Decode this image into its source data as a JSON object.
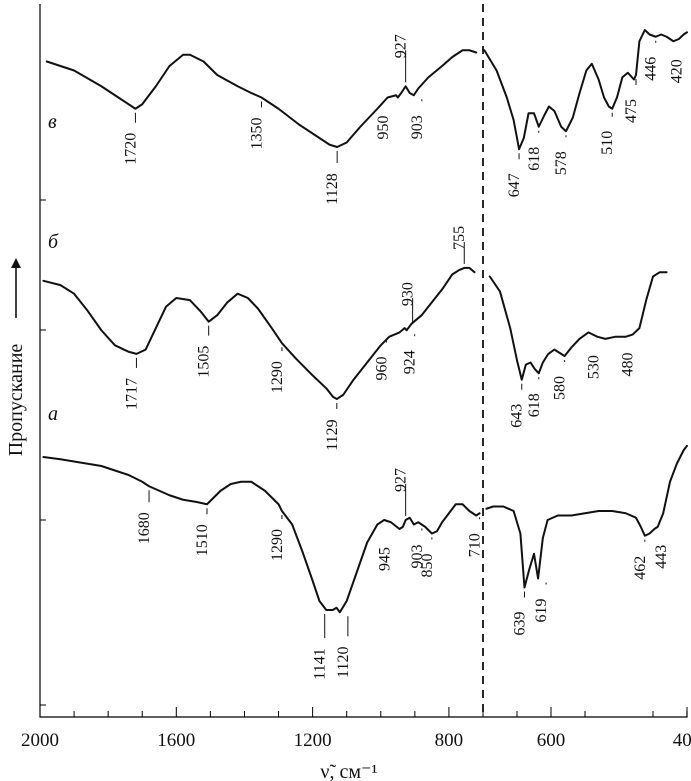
{
  "chart_data": {
    "type": "line",
    "xlabel": "ν̃, см⁻¹",
    "ylabel": "Пропускание",
    "x_ticks": [
      2000,
      1600,
      1200,
      800,
      600,
      400
    ],
    "x_segments": [
      {
        "x_range": [
          2000,
          700
        ]
      },
      {
        "x_range": [
          700,
          400
        ]
      }
    ],
    "series": [
      {
        "name": "в",
        "segments": [
          {
            "x": [
              1980,
              1900,
              1820,
              1760,
              1730,
              1720,
              1700,
              1660,
              1620,
              1580,
              1560,
              1520,
              1480,
              1420,
              1380,
              1350,
              1300,
              1240,
              1180,
              1150,
              1128,
              1100,
              1060,
              1010,
              980,
              955,
              950,
              940,
              927,
              915,
              903,
              890,
              860,
              820,
              790,
              760,
              740,
              720
            ],
            "y": [
              0.86,
              0.82,
              0.75,
              0.69,
              0.66,
              0.65,
              0.67,
              0.75,
              0.84,
              0.89,
              0.89,
              0.86,
              0.8,
              0.75,
              0.72,
              0.7,
              0.65,
              0.58,
              0.52,
              0.49,
              0.48,
              0.5,
              0.57,
              0.65,
              0.7,
              0.71,
              0.7,
              0.72,
              0.75,
              0.72,
              0.71,
              0.74,
              0.79,
              0.84,
              0.88,
              0.91,
              0.91,
              0.9
            ]
          },
          {
            "x": [
              698,
              680,
              665,
              655,
              650,
              647,
              640,
              633,
              625,
              618,
              610,
              603,
              595,
              585,
              578,
              568,
              558,
              548,
              540,
              530,
              522,
              515,
              510,
              503,
              495,
              487,
              478,
              475,
              470,
              462,
              455,
              446,
              438,
              430,
              420,
              412,
              405,
              400
            ],
            "y": [
              0.91,
              0.82,
              0.7,
              0.6,
              0.52,
              0.47,
              0.52,
              0.63,
              0.63,
              0.57,
              0.62,
              0.66,
              0.64,
              0.57,
              0.55,
              0.61,
              0.72,
              0.82,
              0.85,
              0.78,
              0.7,
              0.66,
              0.65,
              0.7,
              0.79,
              0.81,
              0.78,
              0.8,
              0.95,
              1.0,
              0.98,
              0.97,
              0.98,
              0.97,
              0.95,
              0.96,
              0.98,
              0.99
            ]
          }
        ],
        "labels": [
          {
            "x": 1720,
            "text": "1720"
          },
          {
            "x": 1350,
            "text": "1350"
          },
          {
            "x": 1128,
            "text": "1128"
          },
          {
            "x": 950,
            "text": "950"
          },
          {
            "x": 927,
            "text": "927"
          },
          {
            "x": 903,
            "text": "903"
          },
          {
            "x": 647,
            "text": "647"
          },
          {
            "x": 618,
            "text": "618"
          },
          {
            "x": 578,
            "text": "578"
          },
          {
            "x": 510,
            "text": "510"
          },
          {
            "x": 475,
            "text": "475"
          },
          {
            "x": 446,
            "text": "446"
          },
          {
            "x": 420,
            "text": "420"
          }
        ]
      },
      {
        "name": "б",
        "segments": [
          {
            "x": [
              1990,
              1940,
              1900,
              1860,
              1820,
              1780,
              1740,
              1717,
              1690,
              1660,
              1630,
              1600,
              1560,
              1530,
              1505,
              1480,
              1450,
              1420,
              1390,
              1360,
              1320,
              1290,
              1250,
              1200,
              1160,
              1140,
              1129,
              1110,
              1080,
              1040,
              1000,
              975,
              960,
              945,
              930,
              924,
              910,
              880,
              850,
              820,
              790,
              770,
              755,
              740,
              725
            ],
            "y": [
              0.88,
              0.86,
              0.82,
              0.74,
              0.65,
              0.58,
              0.55,
              0.54,
              0.56,
              0.66,
              0.76,
              0.8,
              0.79,
              0.74,
              0.69,
              0.72,
              0.78,
              0.82,
              0.8,
              0.75,
              0.66,
              0.59,
              0.52,
              0.44,
              0.38,
              0.34,
              0.33,
              0.35,
              0.42,
              0.5,
              0.58,
              0.62,
              0.63,
              0.64,
              0.66,
              0.65,
              0.68,
              0.72,
              0.78,
              0.84,
              0.91,
              0.93,
              0.94,
              0.94,
              0.92
            ]
          },
          {
            "x": [
              690,
              675,
              660,
              650,
              643,
              637,
              630,
              624,
              618,
              612,
              604,
              595,
              585,
              580,
              570,
              558,
              545,
              532,
              520,
              505,
              490,
              480,
              470,
              460,
              450,
              440,
              430
            ],
            "y": [
              0.9,
              0.83,
              0.66,
              0.51,
              0.42,
              0.49,
              0.5,
              0.47,
              0.45,
              0.5,
              0.54,
              0.56,
              0.54,
              0.53,
              0.57,
              0.61,
              0.64,
              0.62,
              0.61,
              0.62,
              0.62,
              0.63,
              0.66,
              0.79,
              0.9,
              0.92,
              0.92
            ]
          }
        ],
        "labels": [
          {
            "x": 1717,
            "text": "1717"
          },
          {
            "x": 1505,
            "text": "1505"
          },
          {
            "x": 1290,
            "text": "1290"
          },
          {
            "x": 1129,
            "text": "1129"
          },
          {
            "x": 960,
            "text": "960"
          },
          {
            "x": 930,
            "text": "930"
          },
          {
            "x": 924,
            "text": "924"
          },
          {
            "x": 755,
            "text": "755"
          },
          {
            "x": 643,
            "text": "643"
          },
          {
            "x": 618,
            "text": "618"
          },
          {
            "x": 580,
            "text": "580"
          },
          {
            "x": 530,
            "text": "530"
          },
          {
            "x": 480,
            "text": "480"
          }
        ]
      },
      {
        "name": "а",
        "segments": [
          {
            "x": [
              1990,
              1940,
              1900,
              1860,
              1820,
              1780,
              1740,
              1700,
              1680,
              1650,
              1620,
              1580,
              1540,
              1510,
              1490,
              1470,
              1440,
              1410,
              1380,
              1340,
              1300,
              1290,
              1260,
              1230,
              1200,
              1180,
              1160,
              1141,
              1130,
              1120,
              1100,
              1070,
              1040,
              1010,
              990,
              970,
              945,
              935,
              927,
              915,
              903,
              890,
              870,
              850,
              835,
              820,
              800,
              780,
              760,
              740,
              720,
              710
            ],
            "y": [
              0.88,
              0.87,
              0.86,
              0.85,
              0.84,
              0.82,
              0.8,
              0.77,
              0.75,
              0.73,
              0.71,
              0.69,
              0.68,
              0.67,
              0.7,
              0.73,
              0.76,
              0.77,
              0.77,
              0.73,
              0.67,
              0.64,
              0.58,
              0.46,
              0.33,
              0.24,
              0.2,
              0.2,
              0.21,
              0.19,
              0.24,
              0.37,
              0.5,
              0.58,
              0.6,
              0.59,
              0.56,
              0.57,
              0.6,
              0.61,
              0.58,
              0.59,
              0.57,
              0.54,
              0.55,
              0.59,
              0.63,
              0.67,
              0.67,
              0.64,
              0.62,
              0.63
            ]
          },
          {
            "x": [
              695,
              685,
              670,
              655,
              645,
              639,
              632,
              625,
              619,
              612,
              605,
              590,
              570,
              550,
              530,
              510,
              490,
              475,
              468,
              462,
              455,
              448,
              443,
              435,
              425,
              415,
              405,
              400
            ],
            "y": [
              0.65,
              0.66,
              0.66,
              0.64,
              0.54,
              0.3,
              0.38,
              0.45,
              0.34,
              0.52,
              0.6,
              0.62,
              0.62,
              0.63,
              0.64,
              0.64,
              0.63,
              0.61,
              0.57,
              0.53,
              0.54,
              0.56,
              0.57,
              0.63,
              0.77,
              0.85,
              0.91,
              0.93
            ]
          }
        ],
        "labels": [
          {
            "x": 1680,
            "text": "1680"
          },
          {
            "x": 1510,
            "text": "1510"
          },
          {
            "x": 1290,
            "text": "1290"
          },
          {
            "x": 1141,
            "text": "1141"
          },
          {
            "x": 1120,
            "text": "1120"
          },
          {
            "x": 945,
            "text": "945"
          },
          {
            "x": 927,
            "text": "927"
          },
          {
            "x": 903,
            "text": "903"
          },
          {
            "x": 850,
            "text": "850"
          },
          {
            "x": 710,
            "text": "710"
          },
          {
            "x": 639,
            "text": "639"
          },
          {
            "x": 619,
            "text": "619"
          },
          {
            "x": 462,
            "text": "462"
          },
          {
            "x": 443,
            "text": "443"
          }
        ]
      }
    ]
  }
}
